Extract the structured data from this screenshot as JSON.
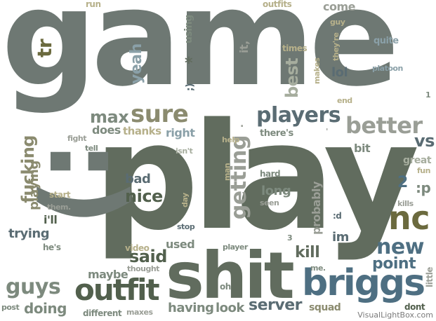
{
  "words": {
    "game": "game",
    "play": "play",
    "smiley": ":)",
    "shit": "shit",
    "briggs": "briggs",
    "outfit": "outfit",
    "players": "players",
    "better": "better",
    "sure": "sure",
    "nc": "nc",
    "new": "new",
    "point": "point",
    "guys": "guys",
    "kill": "kill",
    "said": "said",
    "server": "server",
    "fucking": "fucking",
    "getting": "getting",
    "max": "max",
    "doing": "doing",
    "nice": "nice",
    "bad": "bad",
    "playing": "playing",
    "vs": "vs",
    "yeah": "yeah",
    "best": "best",
    "tr": "tr",
    "long": "long",
    "im": "im",
    "having": "having",
    "look": "look",
    "squad": "squad",
    "probably": "probably",
    "maybe": "maybe",
    "used": "used",
    "trying": "trying",
    "ill": "i'll",
    "right": "right",
    "does": "does",
    "thanks": "thanks",
    "bit": "bit",
    "lol": "lol",
    "great": "great",
    "fun": "fun",
    "tp": ":p",
    "two": "2",
    "little": "little",
    "dont": "dont",
    "come": "come",
    "it_comma": "it,",
    "run": "run",
    "outfits": "outfits",
    "guy": "guy",
    "quite": "quite",
    "theyre": "they're",
    "times": "times",
    "using": "using",
    "platoon": "platoon",
    "makes": "makes",
    "end": "end",
    "one": "1",
    "theres": "there's",
    "help": "help",
    "isnt": "isn't",
    "tell": "tell",
    "fight": "fight",
    "man": "man",
    "hard": "hard",
    "seen": "seen",
    "kills": "kills",
    "start": "start",
    "them": "them.",
    "day": "day",
    "stop": "stop",
    "hes": "he's",
    "video": "video",
    "thought": "thought",
    "player": "player",
    "three": "3",
    "me": "me.",
    "oh": "oh",
    "post": "post",
    "different": "different",
    "maxes": "maxes",
    "d": ":d",
    "wink": ";)",
    "star": "*",
    "quote": "'",
    "dot": "."
  },
  "watermark": "VisualLightBox.com"
}
